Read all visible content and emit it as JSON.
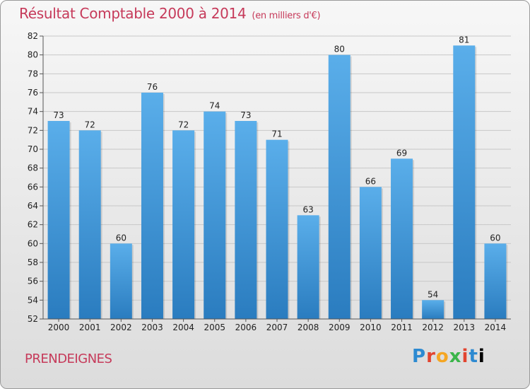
{
  "header": {
    "title": "Résultat Comptable 2000 à 2014",
    "subtitle": "(en milliers d'€)"
  },
  "footer": {
    "commune": "PRENDEIGNES",
    "logo": [
      "P",
      "r",
      "o",
      "x",
      "i",
      "t",
      "i"
    ]
  },
  "colors": {
    "bar_top": "#5aaeea",
    "bar_bottom": "#2a7cbf",
    "title": "#c63a5a"
  },
  "chart_data": {
    "type": "bar",
    "title": "Résultat Comptable 2000 à 2014",
    "subtitle": "(en milliers d'€)",
    "xlabel": "",
    "ylabel": "",
    "categories": [
      "2000",
      "2001",
      "2002",
      "2003",
      "2004",
      "2005",
      "2006",
      "2007",
      "2008",
      "2009",
      "2010",
      "2011",
      "2012",
      "2013",
      "2014"
    ],
    "values": [
      73,
      72,
      60,
      76,
      72,
      74,
      73,
      71,
      63,
      80,
      66,
      69,
      54,
      81,
      60
    ],
    "ylim": [
      52,
      82
    ],
    "yticks": [
      52,
      54,
      56,
      58,
      60,
      62,
      64,
      66,
      68,
      70,
      72,
      74,
      76,
      78,
      80,
      82
    ],
    "grid": true
  }
}
